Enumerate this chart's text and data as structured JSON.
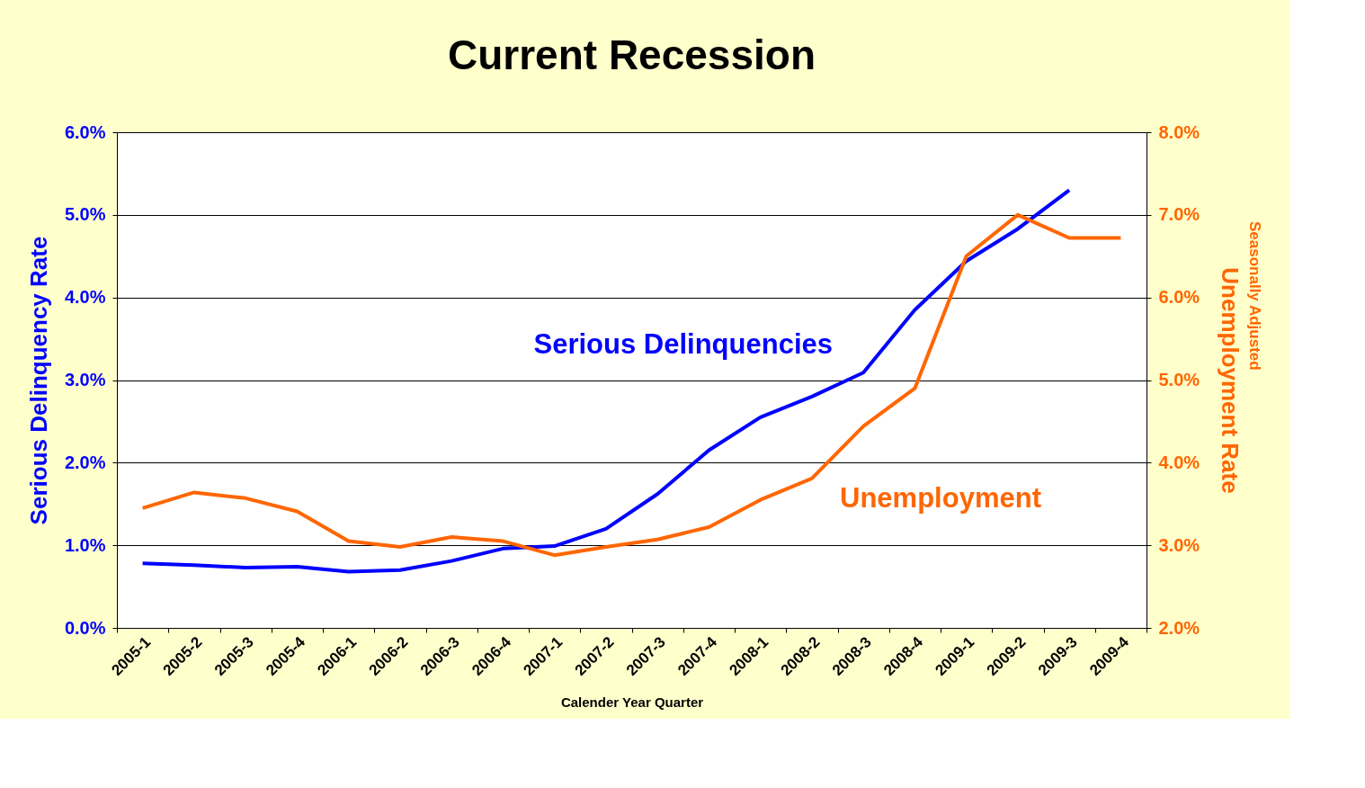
{
  "chart_data": {
    "type": "line",
    "title": "Current Recession",
    "xlabel": "Calender Year Quarter",
    "ylabel": "Serious Delinquency Rate",
    "y2label": "Unemployment Rate",
    "annotations": [
      "Seasonally Adjusted"
    ],
    "categories": [
      "2005-1",
      "2005-2",
      "2005-3",
      "2005-4",
      "2006-1",
      "2006-2",
      "2006-3",
      "2006-4",
      "2007-1",
      "2007-2",
      "2007-3",
      "2007-4",
      "2008-1",
      "2008-2",
      "2008-3",
      "2008-4",
      "2009-1",
      "2009-2",
      "2009-3",
      "2009-4"
    ],
    "series": [
      {
        "name": "Serious Delinquencies",
        "color": "#0000ff",
        "values": [
          0.78,
          0.76,
          0.73,
          0.74,
          0.68,
          0.7,
          0.81,
          0.96,
          0.99,
          1.2,
          1.62,
          2.15,
          2.55,
          2.8,
          3.09,
          3.85,
          4.44,
          4.83,
          5.3,
          null
        ]
      },
      {
        "name": "Unemployment",
        "color": "#ff6600",
        "axis": "y2",
        "values": [
          3.45,
          3.64,
          3.57,
          3.41,
          3.05,
          2.98,
          3.1,
          3.05,
          2.88,
          2.98,
          3.07,
          3.22,
          3.55,
          3.81,
          4.44,
          4.9,
          6.5,
          7.0,
          6.72,
          6.72
        ]
      }
    ],
    "ylim": [
      0,
      6
    ],
    "yticks": [
      {
        "value": 0,
        "label": "0.0%"
      },
      {
        "value": 1,
        "label": "1.0%"
      },
      {
        "value": 2,
        "label": "2.0%"
      },
      {
        "value": 3,
        "label": "3.0%"
      },
      {
        "value": 4,
        "label": "4.0%"
      },
      {
        "value": 5,
        "label": "5.0%"
      },
      {
        "value": 6,
        "label": "6.0%"
      }
    ],
    "y2lim": [
      2,
      8
    ],
    "y2ticks": [
      {
        "value": 2,
        "label": "2.0%"
      },
      {
        "value": 3,
        "label": "3.0%"
      },
      {
        "value": 4,
        "label": "4.0%"
      },
      {
        "value": 5,
        "label": "5.0%"
      },
      {
        "value": 6,
        "label": "6.0%"
      },
      {
        "value": 7,
        "label": "7.0%"
      },
      {
        "value": 8,
        "label": "8.0%"
      }
    ],
    "grid": "y",
    "legend": false,
    "marker": "none",
    "line_style": "solid"
  }
}
